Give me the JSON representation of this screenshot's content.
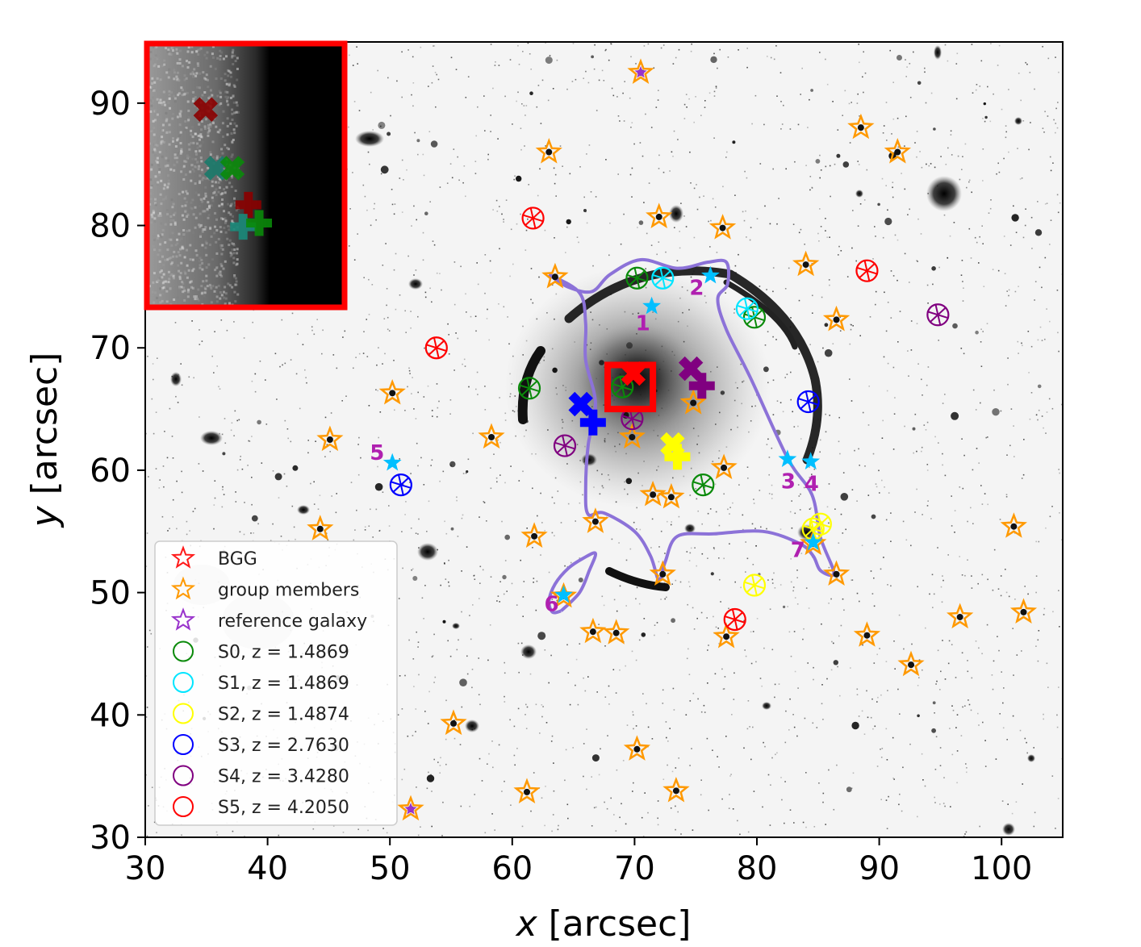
{
  "chart_data": {
    "type": "scatter",
    "title": "",
    "xlabel_var": "x",
    "xlabel_unit": "[arcsec]",
    "ylabel_var": "y",
    "ylabel_unit": "[arcsec]",
    "xlim": [
      30,
      105
    ],
    "ylim": [
      30,
      95
    ],
    "xticks": [
      30,
      40,
      50,
      60,
      70,
      80,
      90,
      100
    ],
    "yticks": [
      30,
      40,
      50,
      60,
      70,
      80,
      90
    ],
    "colors": {
      "bgg": "#ff1a1a",
      "members": "#ff9900",
      "reference": "#9933cc",
      "S0": "#0a8a0a",
      "S1": "#00e5ff",
      "S2": "#ffff00",
      "S3": "#0000ff",
      "S4": "#800080",
      "S5": "#ff0000",
      "critical_curve": "#8c72d8",
      "image_label": "#b020b0",
      "image_star": "#00bfff"
    },
    "legend": [
      {
        "label": "BGG",
        "marker": "star-open",
        "color": "#ff1a1a"
      },
      {
        "label": "group members",
        "marker": "star-open",
        "color": "#ff9900"
      },
      {
        "label": "reference galaxy",
        "marker": "star-open",
        "color": "#9933cc"
      },
      {
        "label": "S0, z = 1.4869",
        "marker": "circle-open",
        "color": "#0a8a0a"
      },
      {
        "label": "S1, z = 1.4869",
        "marker": "circle-open",
        "color": "#00e5ff"
      },
      {
        "label": "S2, z = 1.4874",
        "marker": "circle-open",
        "color": "#ffff00"
      },
      {
        "label": "S3, z = 2.7630",
        "marker": "circle-open",
        "color": "#0000ff"
      },
      {
        "label": "S4, z = 3.4280",
        "marker": "circle-open",
        "color": "#800080"
      },
      {
        "label": "S5, z = 4.2050",
        "marker": "circle-open",
        "color": "#ff0000"
      }
    ],
    "reference_galaxy": [
      [
        70.5,
        92.5
      ],
      [
        51.7,
        32.3
      ]
    ],
    "group_members": [
      [
        70.5,
        92.5
      ],
      [
        88.5,
        88.0
      ],
      [
        91.5,
        86.0
      ],
      [
        63.0,
        86.0
      ],
      [
        72.0,
        80.7
      ],
      [
        77.2,
        79.8
      ],
      [
        84.0,
        76.8
      ],
      [
        63.5,
        75.8
      ],
      [
        86.5,
        72.3
      ],
      [
        50.2,
        66.3
      ],
      [
        45.1,
        62.5
      ],
      [
        58.3,
        62.7
      ],
      [
        69.8,
        62.7
      ],
      [
        74.8,
        65.5
      ],
      [
        77.3,
        60.2
      ],
      [
        71.5,
        58.0
      ],
      [
        73.0,
        57.8
      ],
      [
        61.8,
        54.6
      ],
      [
        66.8,
        55.8
      ],
      [
        44.3,
        55.2
      ],
      [
        72.3,
        51.5
      ],
      [
        84.6,
        54.0
      ],
      [
        86.5,
        51.5
      ],
      [
        64.2,
        49.7
      ],
      [
        66.6,
        46.8
      ],
      [
        68.5,
        46.7
      ],
      [
        77.5,
        46.4
      ],
      [
        89.0,
        46.5
      ],
      [
        96.6,
        48.0
      ],
      [
        101.0,
        55.4
      ],
      [
        101.8,
        48.4
      ],
      [
        92.6,
        44.1
      ],
      [
        55.2,
        39.3
      ],
      [
        70.2,
        37.2
      ],
      [
        61.2,
        33.7
      ],
      [
        73.4,
        33.8
      ],
      [
        51.7,
        32.3
      ]
    ],
    "sources": {
      "S0": {
        "circles": [
          [
            70.2,
            75.7
          ],
          [
            79.8,
            72.5
          ],
          [
            61.4,
            66.7
          ],
          [
            75.6,
            58.8
          ],
          [
            69.0,
            66.8
          ]
        ]
      },
      "S1": {
        "circles": [
          [
            72.3,
            75.7
          ],
          [
            79.2,
            73.2
          ]
        ]
      },
      "S2": {
        "circles": [
          [
            84.6,
            55.2
          ],
          [
            85.2,
            55.6
          ],
          [
            79.8,
            50.6
          ]
        ]
      },
      "S3": {
        "circles": [
          [
            84.2,
            65.6
          ],
          [
            50.9,
            58.8
          ]
        ]
      },
      "S4": {
        "circles": [
          [
            94.8,
            72.7
          ],
          [
            64.3,
            62.0
          ],
          [
            69.8,
            64.2
          ]
        ]
      },
      "S5": {
        "circles": [
          [
            61.7,
            80.6
          ],
          [
            89.0,
            76.3
          ],
          [
            53.8,
            70.0
          ],
          [
            78.2,
            47.8
          ]
        ]
      }
    },
    "model_crosses": [
      {
        "source": "S3",
        "points": [
          [
            65.6,
            65.4
          ],
          [
            66.6,
            63.9
          ]
        ]
      },
      {
        "source": "S4",
        "points": [
          [
            74.6,
            68.3
          ],
          [
            75.5,
            66.9
          ]
        ]
      },
      {
        "source": "S2",
        "points": [
          [
            73.1,
            62.1
          ],
          [
            73.5,
            61.1
          ]
        ]
      },
      {
        "source": "S5",
        "points": [
          [
            69.9,
            67.9
          ]
        ]
      }
    ],
    "multiple_image_markers": [
      {
        "label": "1",
        "x": 71.4,
        "y": 73.4
      },
      {
        "label": "2",
        "x": 76.2,
        "y": 75.9
      },
      {
        "label": "3",
        "x": 82.5,
        "y": 60.9
      },
      {
        "label": "4",
        "x": 84.4,
        "y": 60.7
      },
      {
        "label": "5",
        "x": 50.2,
        "y": 60.6
      },
      {
        "label": "6",
        "x": 64.2,
        "y": 49.8
      },
      {
        "label": "7",
        "x": 84.6,
        "y": 54.1
      }
    ],
    "critical_curve": [
      [
        63.0,
        76.0
      ],
      [
        64.5,
        75.0
      ],
      [
        66.5,
        74.6
      ],
      [
        68.0,
        76.0
      ],
      [
        70.5,
        77.2
      ],
      [
        73.5,
        76.5
      ],
      [
        76.0,
        77.0
      ],
      [
        77.5,
        77.0
      ],
      [
        77.6,
        75.2
      ],
      [
        76.8,
        74.0
      ],
      [
        77.5,
        71.5
      ],
      [
        79.5,
        67.5
      ],
      [
        82.5,
        61.0
      ],
      [
        84.5,
        58.0
      ],
      [
        85.2,
        54.5
      ],
      [
        86.3,
        51.6
      ],
      [
        85.2,
        51.8
      ],
      [
        84.6,
        53.0
      ],
      [
        83.5,
        54.0
      ],
      [
        80.5,
        55.0
      ],
      [
        76.5,
        54.8
      ],
      [
        73.5,
        54.6
      ],
      [
        72.5,
        52.5
      ],
      [
        72.0,
        51.0
      ],
      [
        71.3,
        53.0
      ],
      [
        70.0,
        55.0
      ],
      [
        67.5,
        56.5
      ],
      [
        66.2,
        56.4
      ],
      [
        66.0,
        58.5
      ],
      [
        66.2,
        62.0
      ],
      [
        66.8,
        65.5
      ],
      [
        66.0,
        69.0
      ],
      [
        66.0,
        72.0
      ],
      [
        65.5,
        74.5
      ],
      [
        63.0,
        76.0
      ]
    ],
    "small_loop": [
      [
        64.0,
        48.5
      ],
      [
        65.5,
        50.0
      ],
      [
        66.3,
        51.8
      ],
      [
        66.8,
        53.2
      ],
      [
        65.8,
        52.8
      ],
      [
        64.6,
        52.0
      ],
      [
        63.5,
        50.7
      ],
      [
        63.0,
        49.3
      ],
      [
        63.3,
        48.4
      ],
      [
        64.0,
        48.5
      ]
    ],
    "inset_region": [
      67.8,
      71.5,
      65.0,
      68.6
    ]
  }
}
